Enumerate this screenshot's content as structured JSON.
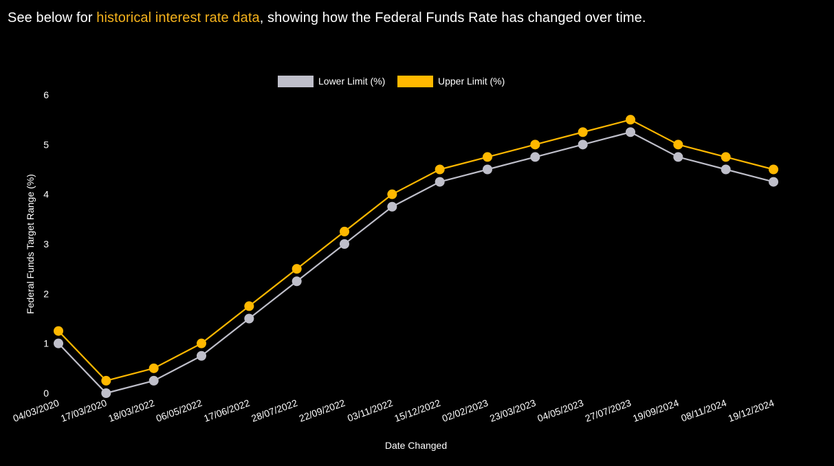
{
  "headline": {
    "before": "See below for ",
    "link_text": "historical interest rate data",
    "after": ", showing how the Federal Funds Rate has changed over time."
  },
  "colors": {
    "background": "#000000",
    "text": "#ffffff",
    "accent": "#f5b21c",
    "lower_series": "#bfbfca",
    "upper_series": "#ffb800"
  },
  "chart_data": {
    "type": "line",
    "title": "",
    "xlabel": "Date Changed",
    "ylabel": "Federal Funds Target Range (%)",
    "ylim": [
      0,
      6
    ],
    "yticks": [
      0,
      1,
      2,
      3,
      4,
      5,
      6
    ],
    "grid": false,
    "legend_position": "top-center",
    "categories": [
      "04/03/2020",
      "17/03/2020",
      "18/03/2022",
      "06/05/2022",
      "17/06/2022",
      "28/07/2022",
      "22/09/2022",
      "03/11/2022",
      "15/12/2022",
      "02/02/2023",
      "23/03/2023",
      "04/05/2023",
      "27/07/2023",
      "19/09/2024",
      "08/11/2024",
      "19/12/2024"
    ],
    "series": [
      {
        "name": "Lower Limit (%)",
        "values": [
          1,
          0,
          0.25,
          0.75,
          1.5,
          2.25,
          3,
          3.75,
          4.25,
          4.5,
          4.75,
          5,
          5.25,
          4.75,
          4.5,
          4.25
        ]
      },
      {
        "name": "Upper Limit (%)",
        "values": [
          1.25,
          0.25,
          0.5,
          1,
          1.75,
          2.5,
          3.25,
          4,
          4.5,
          4.75,
          5,
          5.25,
          5.5,
          5,
          4.75,
          4.5
        ]
      }
    ]
  }
}
